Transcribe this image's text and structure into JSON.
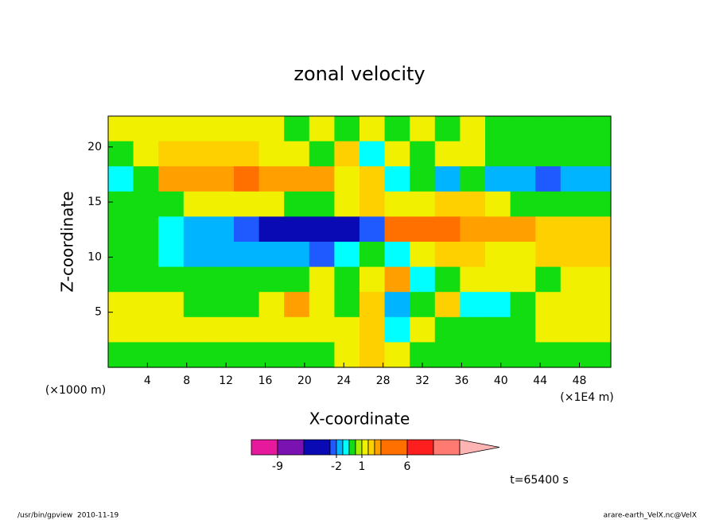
{
  "chart_data": {
    "type": "contour",
    "title": "zonal velocity",
    "x_label": "X-coordinate",
    "y_label": "Z-coordinate",
    "x_unit": "(×1E4 m)",
    "y_unit": "(×1000 m)",
    "xlim": [
      0,
      51.2
    ],
    "ylim": [
      0,
      22.8
    ],
    "xticks": [
      4,
      8,
      12,
      16,
      20,
      24,
      28,
      32,
      36,
      40,
      44,
      48
    ],
    "yticks": [
      5,
      10,
      15,
      20
    ],
    "z": [
      [
        1.2,
        1.2,
        1.2,
        1.2,
        1.2,
        1.2,
        1.2,
        0.2,
        1.2,
        0.2,
        1.2,
        0.2,
        1.2,
        0.2,
        1.2,
        0.2,
        0.2,
        0.2,
        0.2,
        0.2
      ],
      [
        0.2,
        1.2,
        1.7,
        1.7,
        1.7,
        1.7,
        1.2,
        1.2,
        0.2,
        1.7,
        -0.5,
        1.2,
        0.2,
        1.2,
        1.2,
        0.2,
        0.2,
        0.2,
        0.2,
        0.2
      ],
      [
        -0.5,
        0.2,
        2.5,
        2.5,
        2.5,
        4,
        2.5,
        2.5,
        2.5,
        1.2,
        1.7,
        -0.5,
        0.2,
        -1.5,
        0.2,
        -1.5,
        -1.5,
        -2.5,
        -1.5,
        -1.5
      ],
      [
        0.2,
        0.2,
        0.2,
        1.2,
        1.2,
        1.2,
        1.2,
        0.2,
        0.2,
        1.2,
        1.7,
        1.2,
        1.2,
        1.7,
        1.7,
        1.2,
        0.2,
        0.2,
        0.2,
        0.2
      ],
      [
        0.2,
        0.2,
        -0.5,
        -1.5,
        -1.5,
        -2.5,
        -4,
        -4,
        -4,
        -4,
        -2.5,
        4,
        4,
        4,
        2.5,
        2.5,
        2.5,
        1.7,
        1.7,
        1.7
      ],
      [
        0.2,
        0.2,
        -0.5,
        -1.5,
        -1.5,
        -1.5,
        -1.5,
        -1.5,
        -2.5,
        -0.5,
        0.2,
        -0.5,
        1.2,
        1.7,
        1.7,
        1.2,
        1.2,
        1.7,
        1.7,
        1.7
      ],
      [
        0.2,
        0.2,
        0.2,
        0.2,
        0.2,
        0.2,
        0.2,
        0.2,
        1.2,
        0.2,
        1.2,
        2.5,
        -0.5,
        0.2,
        1.2,
        1.2,
        1.2,
        0.2,
        1.2,
        1.2
      ],
      [
        1.2,
        1.2,
        1.2,
        0.2,
        0.2,
        0.2,
        1.2,
        2.5,
        1.2,
        0.2,
        1.7,
        -1.5,
        0.2,
        1.7,
        -0.5,
        -0.5,
        0.2,
        1.2,
        1.2,
        1.2
      ],
      [
        1.2,
        1.2,
        1.2,
        1.2,
        1.2,
        1.2,
        1.2,
        1.2,
        1.2,
        1.2,
        1.7,
        -0.5,
        1.2,
        0.2,
        0.2,
        0.2,
        0.2,
        1.2,
        1.2,
        1.2
      ],
      [
        0.2,
        0.2,
        0.2,
        0.2,
        0.2,
        0.2,
        0.2,
        0.2,
        0.2,
        1.2,
        1.7,
        1.2,
        0.2,
        0.2,
        0.2,
        0.2,
        0.2,
        0.2,
        0.2,
        0.2
      ]
    ],
    "colorbar": {
      "levels": [
        -12,
        -9,
        -6,
        -3,
        -2,
        -1,
        0,
        0.5,
        1,
        1.5,
        2,
        3,
        6,
        9,
        12
      ],
      "colors": [
        "#e6189c",
        "#7a12b2",
        "#0a0ab4",
        "#1e5aff",
        "#00b4ff",
        "#00ffff",
        "#11dd11",
        "#a8f000",
        "#f0f000",
        "#ffd000",
        "#ffa000",
        "#ff7000",
        "#ff1e1e",
        "#ff7a70"
      ],
      "extend_color": "#ffb4b4",
      "ticks": [
        -9,
        -2,
        1,
        6
      ]
    },
    "annotation": "t=65400 s",
    "footer_left": "/usr/bin/gpview  2010-11-19",
    "footer_right": "arare-earth_VelX.nc@VelX"
  }
}
